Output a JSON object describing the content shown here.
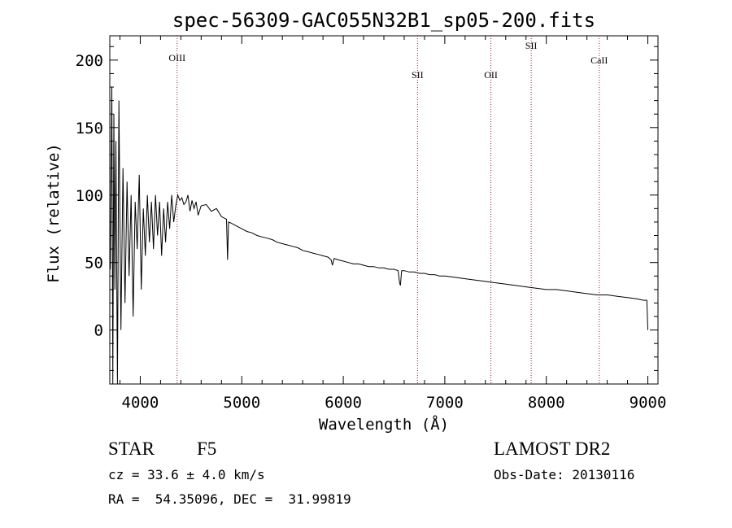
{
  "chart_data": {
    "type": "line",
    "title": "spec-56309-GAC055N32B1_sp05-200.fits",
    "xlabel": "Wavelength (Å)",
    "ylabel": "Flux (relative)",
    "xlim": [
      3700,
      9100
    ],
    "ylim": [
      -40,
      218
    ],
    "xticks": [
      4000,
      5000,
      6000,
      7000,
      8000,
      9000
    ],
    "yticks": [
      0,
      50,
      100,
      150,
      200
    ],
    "grid": false,
    "lines": [
      {
        "label": "OIII",
        "x": 4363
      },
      {
        "label": "SII",
        "x": 6731
      },
      {
        "label": "OII",
        "x": 7454
      },
      {
        "label": "SII",
        "x": 7851
      },
      {
        "label": "CaII",
        "x": 8521
      }
    ],
    "series": [
      {
        "x": [
          3705,
          3720,
          3730,
          3740,
          3750,
          3760,
          3775,
          3790,
          3810,
          3830,
          3850,
          3870,
          3890,
          3910,
          3930,
          3950,
          3970,
          3990,
          4010,
          4030,
          4050,
          4070,
          4090,
          4110,
          4130,
          4150,
          4170,
          4190,
          4210,
          4230,
          4250,
          4270,
          4290,
          4310,
          4330,
          4350,
          4370,
          4390,
          4410,
          4430,
          4450,
          4470,
          4490,
          4510,
          4530,
          4550,
          4570,
          4600,
          4650,
          4700,
          4750,
          4800,
          4850,
          4860,
          4870,
          4900,
          4950,
          5000,
          5050,
          5100,
          5150,
          5200,
          5250,
          5300,
          5350,
          5400,
          5450,
          5500,
          5550,
          5600,
          5650,
          5700,
          5750,
          5800,
          5850,
          5880,
          5893,
          5910,
          5950,
          6000,
          6050,
          6100,
          6150,
          6200,
          6250,
          6300,
          6350,
          6400,
          6450,
          6500,
          6540,
          6555,
          6563,
          6575,
          6600,
          6650,
          6700,
          6750,
          6800,
          6850,
          6900,
          6950,
          7000,
          7100,
          7200,
          7300,
          7400,
          7500,
          7600,
          7700,
          7800,
          7900,
          8000,
          8100,
          8200,
          8300,
          8400,
          8500,
          8600,
          8700,
          8800,
          8900,
          8960,
          8980,
          8990,
          9000
        ],
        "y": [
          45,
          180,
          -40,
          160,
          30,
          140,
          -40,
          170,
          0,
          120,
          20,
          110,
          40,
          100,
          10,
          95,
          60,
          115,
          30,
          90,
          55,
          100,
          65,
          95,
          60,
          100,
          70,
          95,
          55,
          90,
          65,
          95,
          75,
          100,
          80,
          92,
          100,
          96,
          98,
          93,
          95,
          100,
          88,
          96,
          90,
          95,
          85,
          92,
          93,
          88,
          90,
          84,
          82,
          52,
          80,
          79,
          77,
          75,
          73,
          72,
          70,
          69,
          68,
          67,
          65,
          64,
          63,
          62,
          61,
          59,
          58,
          57,
          56,
          55,
          54,
          52,
          48,
          53,
          52,
          51,
          50,
          49,
          49,
          48,
          47,
          47,
          46,
          46,
          45,
          45,
          44,
          35,
          33,
          44,
          44,
          43,
          43,
          42,
          42,
          41,
          41,
          40,
          40,
          39,
          38,
          37,
          36,
          35,
          34,
          33,
          32,
          31,
          30,
          30,
          29,
          28,
          27,
          26,
          26,
          25,
          24,
          23,
          22,
          22,
          22,
          0
        ]
      }
    ]
  },
  "info": {
    "type": "STAR",
    "subclass": "F5",
    "survey": "LAMOST DR2",
    "cz": "cz = 33.6 ± 4.0 km/s",
    "obs_date": "Obs-Date: 20130116",
    "radec": "RA =  54.35096, DEC =  31.99819"
  }
}
